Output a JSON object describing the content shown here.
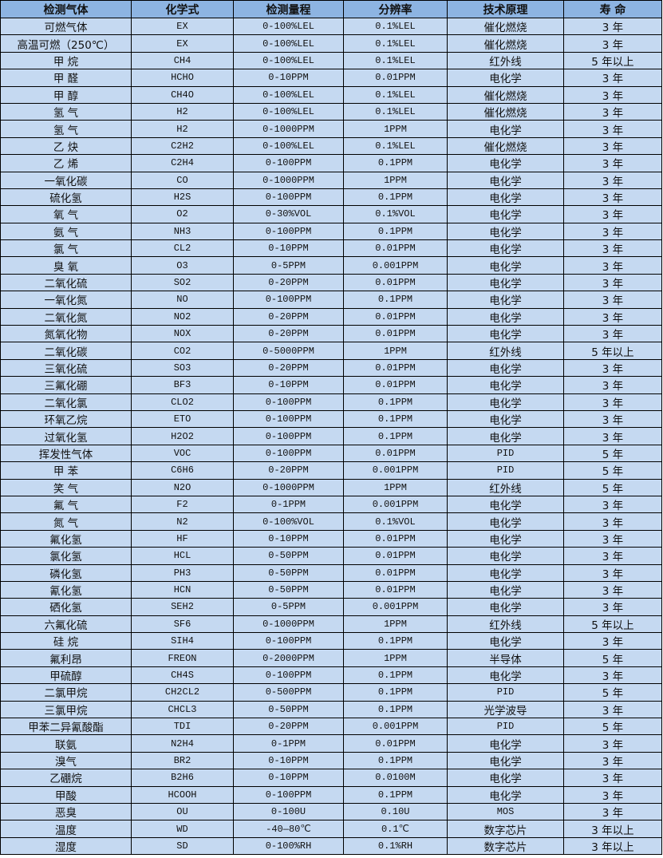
{
  "table": {
    "headers": [
      "检测气体",
      "化学式",
      "检测量程",
      "分辨率",
      "技术原理",
      "寿 命"
    ],
    "rows": [
      [
        "可燃气体",
        "EX",
        "0-100%LEL",
        "0.1%LEL",
        "催化燃烧",
        "3 年"
      ],
      [
        "高温可燃（250℃）",
        "EX",
        "0-100%LEL",
        "0.1%LEL",
        "催化燃烧",
        "3 年"
      ],
      [
        "甲 烷",
        "CH4",
        "0-100%LEL",
        "0.1%LEL",
        "红外线",
        "5 年以上"
      ],
      [
        "甲 醛",
        "HCHO",
        "0-10PPM",
        "0.01PPM",
        "电化学",
        "3 年"
      ],
      [
        "甲 醇",
        "CH4O",
        "0-100%LEL",
        "0.1%LEL",
        "催化燃烧",
        "3 年"
      ],
      [
        "氢 气",
        "H2",
        "0-100%LEL",
        "0.1%LEL",
        "催化燃烧",
        "3 年"
      ],
      [
        "氢 气",
        "H2",
        "0-1000PPM",
        "1PPM",
        "电化学",
        "3 年"
      ],
      [
        "乙 炔",
        "C2H2",
        "0-100%LEL",
        "0.1%LEL",
        "催化燃烧",
        "3 年"
      ],
      [
        "乙 烯",
        "C2H4",
        "0-100PPM",
        "0.1PPM",
        "电化学",
        "3 年"
      ],
      [
        "一氧化碳",
        "CO",
        "0-1000PPM",
        "1PPM",
        "电化学",
        "3 年"
      ],
      [
        "硫化氢",
        "H2S",
        "0-100PPM",
        "0.1PPM",
        "电化学",
        "3 年"
      ],
      [
        "氧 气",
        "O2",
        "0-30%VOL",
        "0.1%VOL",
        "电化学",
        "3 年"
      ],
      [
        "氨 气",
        "NH3",
        "0-100PPM",
        "0.1PPM",
        "电化学",
        "3 年"
      ],
      [
        "氯 气",
        "CL2",
        "0-10PPM",
        "0.01PPM",
        "电化学",
        "3 年"
      ],
      [
        "臭 氧",
        "O3",
        "0-5PPM",
        "0.001PPM",
        "电化学",
        "3 年"
      ],
      [
        "二氧化硫",
        "SO2",
        "0-20PPM",
        "0.01PPM",
        "电化学",
        "3 年"
      ],
      [
        "一氧化氮",
        "NO",
        "0-100PPM",
        "0.1PPM",
        "电化学",
        "3 年"
      ],
      [
        "二氧化氮",
        "NO2",
        "0-20PPM",
        "0.01PPM",
        "电化学",
        "3 年"
      ],
      [
        "氮氧化物",
        "NOX",
        "0-20PPM",
        "0.01PPM",
        "电化学",
        "3 年"
      ],
      [
        "二氧化碳",
        "CO2",
        "0-5000PPM",
        "1PPM",
        "红外线",
        "5 年以上"
      ],
      [
        "三氧化硫",
        "SO3",
        "0-20PPM",
        "0.01PPM",
        "电化学",
        "3 年"
      ],
      [
        "三氟化硼",
        "BF3",
        "0-10PPM",
        "0.01PPM",
        "电化学",
        "3 年"
      ],
      [
        "二氧化氯",
        "CLO2",
        "0-100PPM",
        "0.1PPM",
        "电化学",
        "3 年"
      ],
      [
        "环氧乙烷",
        "ETO",
        "0-100PPM",
        "0.1PPM",
        "电化学",
        "3 年"
      ],
      [
        "过氧化氢",
        "H2O2",
        "0-100PPM",
        "0.1PPM",
        "电化学",
        "3 年"
      ],
      [
        "挥发性气体",
        "VOC",
        "0-100PPM",
        "0.01PPM",
        "PID",
        "5 年"
      ],
      [
        "甲 苯",
        "C6H6",
        "0-20PPM",
        "0.001PPM",
        "PID",
        "5 年"
      ],
      [
        "笑 气",
        "N2O",
        "0-1000PPM",
        "1PPM",
        "红外线",
        "5 年"
      ],
      [
        "氟 气",
        "F2",
        "0-1PPM",
        "0.001PPM",
        "电化学",
        "3 年"
      ],
      [
        "氮 气",
        "N2",
        "0-100%VOL",
        "0.1%VOL",
        "电化学",
        "3 年"
      ],
      [
        "氟化氢",
        "HF",
        "0-10PPM",
        "0.01PPM",
        "电化学",
        "3 年"
      ],
      [
        "氯化氢",
        "HCL",
        "0-50PPM",
        "0.01PPM",
        "电化学",
        "3 年"
      ],
      [
        "磷化氢",
        "PH3",
        "0-50PPM",
        "0.01PPM",
        "电化学",
        "3 年"
      ],
      [
        "氰化氢",
        "HCN",
        "0-50PPM",
        "0.01PPM",
        "电化学",
        "3 年"
      ],
      [
        "硒化氢",
        "SEH2",
        "0-5PPM",
        "0.001PPM",
        "电化学",
        "3 年"
      ],
      [
        "六氟化硫",
        "SF6",
        "0-1000PPM",
        "1PPM",
        "红外线",
        "5 年以上"
      ],
      [
        "硅 烷",
        "SIH4",
        "0-100PPM",
        "0.1PPM",
        "电化学",
        "3 年"
      ],
      [
        "氟利昂",
        "FREON",
        "0-2000PPM",
        "1PPM",
        "半导体",
        "5 年"
      ],
      [
        "甲硫醇",
        "CH4S",
        "0-100PPM",
        "0.1PPM",
        "电化学",
        "3 年"
      ],
      [
        "二氯甲烷",
        "CH2CL2",
        "0-500PPM",
        "0.1PPM",
        "PID",
        "5 年"
      ],
      [
        "三氯甲烷",
        "CHCL3",
        "0-50PPM",
        "0.1PPM",
        "光学波导",
        "3 年"
      ],
      [
        "甲苯二异氰酸酯",
        "TDI",
        "0-20PPM",
        "0.001PPM",
        "PID",
        "5 年"
      ],
      [
        "联氨",
        "N2H4",
        "0-1PPM",
        "0.01PPM",
        "电化学",
        "3 年"
      ],
      [
        "溴气",
        "BR2",
        "0-10PPM",
        "0.1PPM",
        "电化学",
        "3 年"
      ],
      [
        "乙硼烷",
        "B2H6",
        "0-10PPM",
        "0.0100M",
        "电化学",
        "3 年"
      ],
      [
        "甲酸",
        "HCOOH",
        "0-100PPM",
        "0.1PPM",
        "电化学",
        "3 年"
      ],
      [
        "恶臭",
        "OU",
        "0-100U",
        "0.10U",
        "MOS",
        "3 年"
      ],
      [
        "温度",
        "WD",
        "-40—80℃",
        "0.1℃",
        "数字芯片",
        "3 年以上"
      ],
      [
        "湿度",
        "SD",
        "0-100%RH",
        "0.1%RH",
        "数字芯片",
        "3 年以上"
      ]
    ]
  },
  "colors": {
    "header_bg": "#8db4e2",
    "row_bg": "#c5d9f1",
    "border": "#000000"
  }
}
